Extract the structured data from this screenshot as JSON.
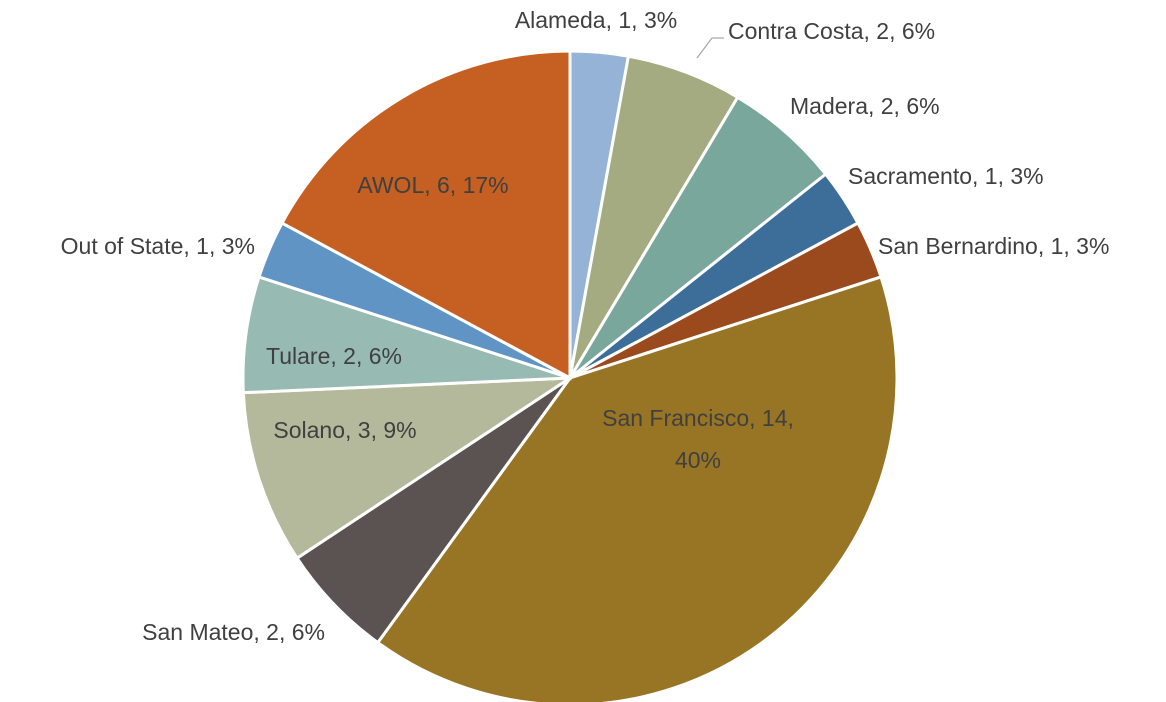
{
  "chart_data": {
    "type": "pie",
    "values": [
      1,
      2,
      2,
      1,
      1,
      14,
      2,
      3,
      2,
      1,
      6
    ],
    "value_labels": [
      "Alameda, 1, 3%",
      "Contra Costa, 2, 6%",
      "Madera, 2, 6%",
      "Sacramento, 1, 3%",
      "San Bernardino, 1, 3%",
      "San Francisco, 14, 40%",
      "San Mateo, 2, 6%",
      "Solano, 3, 9%",
      "Tulare, 2, 6%",
      "Out of State, 1, 3%",
      "AWOL, 6, 17%"
    ],
    "colors": [
      "#95b3d7",
      "#a5ab81",
      "#7aa79c",
      "#3d6e99",
      "#9a4a1c",
      "#977524",
      "#5b5352",
      "#b3b99a",
      "#97bab2",
      "#5f94c4",
      "#c55f22"
    ]
  }
}
